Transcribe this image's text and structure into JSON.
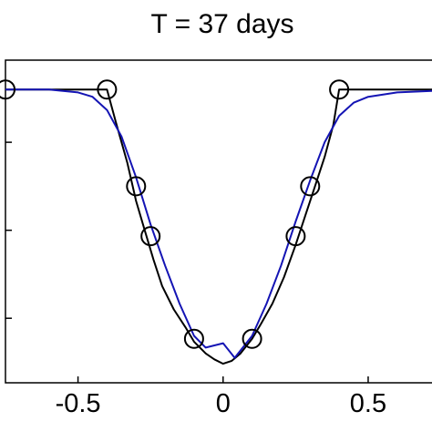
{
  "chart_data": {
    "type": "line",
    "title": "T = 37 days",
    "xlabel": "",
    "ylabel": "",
    "xlim": [
      -0.75,
      0.72
    ],
    "ylim": [
      0,
      1.1
    ],
    "x_ticks": [
      -0.5,
      0,
      0.5
    ],
    "x_tick_labels": [
      "-0.5",
      "0",
      "0.5"
    ],
    "y_ticks": [
      0.22,
      0.52,
      0.82
    ],
    "grid": false,
    "legend": "none",
    "series": [
      {
        "color": "#000000",
        "style": "solid",
        "marker": "none",
        "points": [
          [
            -0.75,
            1.0
          ],
          [
            -0.6,
            1.0
          ],
          [
            -0.45,
            1.0
          ],
          [
            -0.4,
            1.0
          ],
          [
            -0.37,
            0.89
          ],
          [
            -0.33,
            0.75
          ],
          [
            -0.3,
            0.62
          ],
          [
            -0.27,
            0.52
          ],
          [
            -0.24,
            0.42
          ],
          [
            -0.21,
            0.33
          ],
          [
            -0.17,
            0.25
          ],
          [
            -0.13,
            0.19
          ],
          [
            -0.1,
            0.14
          ],
          [
            -0.06,
            0.1
          ],
          [
            -0.03,
            0.08
          ],
          [
            0.0,
            0.065
          ],
          [
            0.03,
            0.075
          ],
          [
            0.06,
            0.1
          ],
          [
            0.1,
            0.15
          ],
          [
            0.13,
            0.2
          ],
          [
            0.17,
            0.27
          ],
          [
            0.21,
            0.36
          ],
          [
            0.25,
            0.47
          ],
          [
            0.28,
            0.56
          ],
          [
            0.31,
            0.65
          ],
          [
            0.35,
            0.77
          ],
          [
            0.38,
            0.88
          ],
          [
            0.4,
            1.0
          ],
          [
            0.5,
            1.0
          ],
          [
            0.72,
            1.0
          ]
        ]
      },
      {
        "color": "#1414b4",
        "style": "solid",
        "marker": "none",
        "points": [
          [
            -0.75,
            1.0
          ],
          [
            -0.6,
            1.0
          ],
          [
            -0.5,
            0.99
          ],
          [
            -0.45,
            0.975
          ],
          [
            -0.4,
            0.93
          ],
          [
            -0.35,
            0.84
          ],
          [
            -0.3,
            0.7
          ],
          [
            -0.25,
            0.54
          ],
          [
            -0.2,
            0.4
          ],
          [
            -0.15,
            0.27
          ],
          [
            -0.1,
            0.16
          ],
          [
            -0.06,
            0.12
          ],
          [
            0.0,
            0.135
          ],
          [
            0.04,
            0.085
          ],
          [
            0.1,
            0.16
          ],
          [
            0.15,
            0.27
          ],
          [
            0.2,
            0.4
          ],
          [
            0.25,
            0.55
          ],
          [
            0.3,
            0.69
          ],
          [
            0.35,
            0.82
          ],
          [
            0.4,
            0.91
          ],
          [
            0.45,
            0.955
          ],
          [
            0.5,
            0.975
          ],
          [
            0.6,
            0.99
          ],
          [
            0.72,
            0.995
          ]
        ]
      },
      {
        "color": "#000000",
        "style": "none",
        "marker": "open-circle",
        "points": [
          [
            -0.75,
            1.0
          ],
          [
            -0.4,
            1.0
          ],
          [
            -0.3,
            0.67
          ],
          [
            -0.25,
            0.5
          ],
          [
            -0.1,
            0.15
          ],
          [
            0.1,
            0.15
          ],
          [
            0.25,
            0.5
          ],
          [
            0.3,
            0.67
          ],
          [
            0.4,
            1.0
          ]
        ]
      }
    ]
  }
}
